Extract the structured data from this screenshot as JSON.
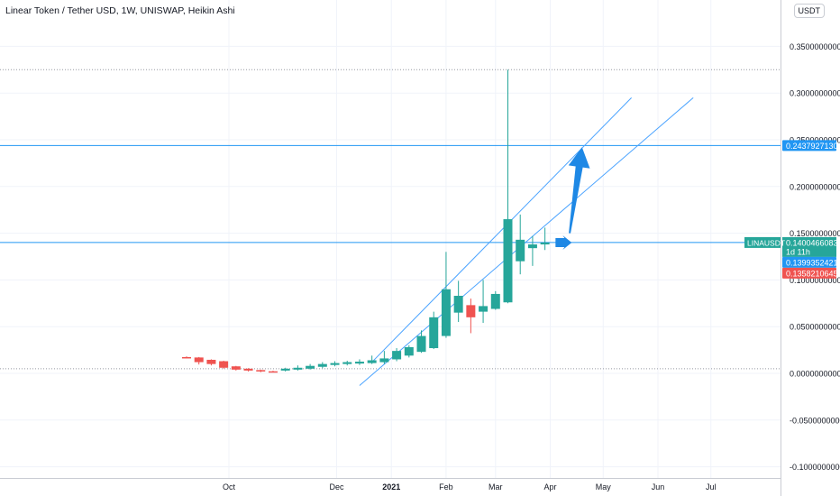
{
  "header": {
    "title": "Linear Token / Tether USD, 1W, UNISWAP, Heikin Ashi",
    "currency": "USDT"
  },
  "colors": {
    "up": "#26a69a",
    "down": "#ef5350",
    "line": "#2962ff",
    "channel": "#4aa3ff",
    "arrow": "#1e88e5",
    "price_tag": "#26a69a",
    "tag_blue": "#2196f3",
    "tag_red": "#ef5350"
  },
  "chart_data": {
    "type": "candlestick",
    "style": "Heikin Ashi",
    "symbol": "LINAUSDT",
    "ylim": [
      -0.1,
      0.35
    ],
    "y_ticks": [
      "0.3500000000",
      "0.3000000000",
      "0.2500000000",
      "0.2000000000",
      "0.1500000000",
      "0.1000000000",
      "0.0500000000",
      "0.0000000000",
      "-0.0500000000",
      "-0.1000000000"
    ],
    "x_ticks": [
      "Oct",
      "Dec",
      "2021",
      "Feb",
      "Mar",
      "Apr",
      "May",
      "Jun",
      "Jul"
    ],
    "candles": [
      {
        "date": "2020-09-07",
        "open": 0.0174,
        "close": 0.017,
        "high": 0.0182,
        "low": 0.0163
      },
      {
        "date": "2020-09-14",
        "open": 0.017,
        "close": 0.012,
        "high": 0.0175,
        "low": 0.0095
      },
      {
        "date": "2020-09-21",
        "open": 0.0145,
        "close": 0.01,
        "high": 0.015,
        "low": 0.0085
      },
      {
        "date": "2020-09-28",
        "open": 0.013,
        "close": 0.006,
        "high": 0.0135,
        "low": 0.005
      },
      {
        "date": "2020-10-05",
        "open": 0.0075,
        "close": 0.004,
        "high": 0.008,
        "low": 0.003
      },
      {
        "date": "2020-10-12",
        "open": 0.005,
        "close": 0.003,
        "high": 0.0055,
        "low": 0.002
      },
      {
        "date": "2020-10-19",
        "open": 0.0035,
        "close": 0.002,
        "high": 0.004,
        "low": 0.0012
      },
      {
        "date": "2020-10-26",
        "open": 0.0022,
        "close": 0.0015,
        "high": 0.0028,
        "low": 0.001
      },
      {
        "date": "2020-11-02",
        "open": 0.003,
        "close": 0.005,
        "high": 0.006,
        "low": 0.002
      },
      {
        "date": "2020-11-09",
        "open": 0.004,
        "close": 0.006,
        "high": 0.0085,
        "low": 0.003
      },
      {
        "date": "2020-11-16",
        "open": 0.005,
        "close": 0.008,
        "high": 0.01,
        "low": 0.004
      },
      {
        "date": "2020-11-23",
        "open": 0.007,
        "close": 0.01,
        "high": 0.012,
        "low": 0.0055
      },
      {
        "date": "2020-11-30",
        "open": 0.009,
        "close": 0.011,
        "high": 0.013,
        "low": 0.0075
      },
      {
        "date": "2020-12-07",
        "open": 0.01,
        "close": 0.012,
        "high": 0.0135,
        "low": 0.0085
      },
      {
        "date": "2020-12-14",
        "open": 0.0105,
        "close": 0.0125,
        "high": 0.015,
        "low": 0.009
      },
      {
        "date": "2020-12-21",
        "open": 0.011,
        "close": 0.014,
        "high": 0.019,
        "low": 0.01
      },
      {
        "date": "2020-12-28",
        "open": 0.012,
        "close": 0.016,
        "high": 0.024,
        "low": 0.01
      },
      {
        "date": "2021-01-04",
        "open": 0.015,
        "close": 0.024,
        "high": 0.027,
        "low": 0.013
      },
      {
        "date": "2021-01-11",
        "open": 0.019,
        "close": 0.028,
        "high": 0.03,
        "low": 0.017
      },
      {
        "date": "2021-01-18",
        "open": 0.023,
        "close": 0.04,
        "high": 0.046,
        "low": 0.022
      },
      {
        "date": "2021-01-25",
        "open": 0.027,
        "close": 0.06,
        "high": 0.066,
        "low": 0.026
      },
      {
        "date": "2021-02-01",
        "open": 0.04,
        "close": 0.09,
        "high": 0.13,
        "low": 0.038
      },
      {
        "date": "2021-02-08",
        "open": 0.065,
        "close": 0.083,
        "high": 0.099,
        "low": 0.055
      },
      {
        "date": "2021-02-15",
        "open": 0.073,
        "close": 0.06,
        "high": 0.08,
        "low": 0.043
      },
      {
        "date": "2021-02-22",
        "open": 0.066,
        "close": 0.072,
        "high": 0.1,
        "low": 0.054
      },
      {
        "date": "2021-03-01",
        "open": 0.069,
        "close": 0.085,
        "high": 0.088,
        "low": 0.068
      },
      {
        "date": "2021-03-08",
        "open": 0.076,
        "close": 0.165,
        "high": 0.325,
        "low": 0.075
      },
      {
        "date": "2021-03-15",
        "open": 0.12,
        "close": 0.143,
        "high": 0.17,
        "low": 0.106
      },
      {
        "date": "2021-03-22",
        "open": 0.134,
        "close": 0.138,
        "high": 0.147,
        "low": 0.115
      },
      {
        "date": "2021-03-29",
        "open": 0.138,
        "close": 0.14,
        "high": 0.156,
        "low": 0.132
      }
    ],
    "horizontal_lines": [
      {
        "value": 0.243792713,
        "label": "0.2437927130"
      },
      {
        "value": 0.1400466083,
        "label": "0.1400466083"
      }
    ],
    "channel": {
      "upper": {
        "x1": "2020-12-21",
        "y1": 0.012,
        "x2": "2021-05-17",
        "y2": 0.295
      },
      "lower": {
        "x1": "2020-12-14",
        "y1": -0.013,
        "x2": "2021-06-21",
        "y2": 0.295
      }
    },
    "arrows": [
      {
        "from_date": "2021-04-12",
        "from_value": 0.15,
        "to_date": "2021-04-19",
        "to_value": 0.242
      },
      {
        "from_date": "2021-04-05",
        "from_value": 0.14,
        "to_date": "2021-04-12",
        "to_value": 0.14
      }
    ],
    "gray_dotted_lines": [
      0.325,
      0.005
    ],
    "price_labels": [
      {
        "symbol": "LINAUSDT",
        "value": "0.1400466083",
        "countdown": "1d 11h",
        "color": "green"
      },
      {
        "value": "0.1399352421",
        "color": "blue"
      },
      {
        "value": "0.1358210645",
        "color": "red"
      }
    ]
  }
}
